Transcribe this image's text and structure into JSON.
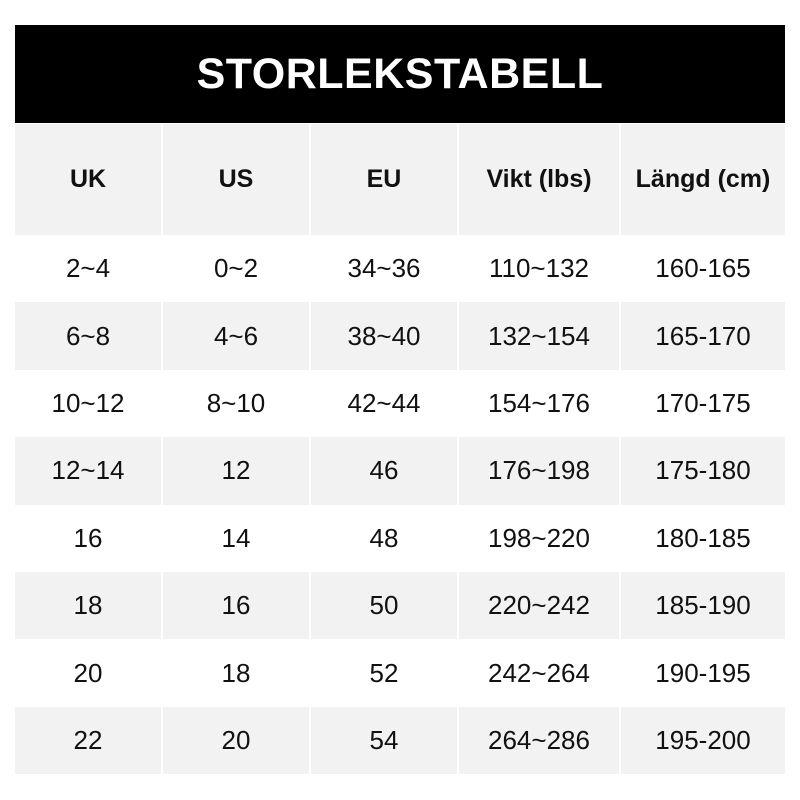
{
  "title": "STORLEKSTABELL",
  "headers": [
    "UK",
    "US",
    "EU",
    "Vikt (lbs)",
    "Längd (cm)"
  ],
  "rows": [
    [
      "2~4",
      "0~2",
      "34~36",
      "110~132",
      "160-165"
    ],
    [
      "6~8",
      "4~6",
      "38~40",
      "132~154",
      "165-170"
    ],
    [
      "10~12",
      "8~10",
      "42~44",
      "154~176",
      "170-175"
    ],
    [
      "12~14",
      "12",
      "46",
      "176~198",
      "175-180"
    ],
    [
      "16",
      "14",
      "48",
      "198~220",
      "180-185"
    ],
    [
      "18",
      "16",
      "50",
      "220~242",
      "185-190"
    ],
    [
      "20",
      "18",
      "52",
      "242~264",
      "190-195"
    ],
    [
      "22",
      "20",
      "54",
      "264~286",
      "195-200"
    ]
  ]
}
